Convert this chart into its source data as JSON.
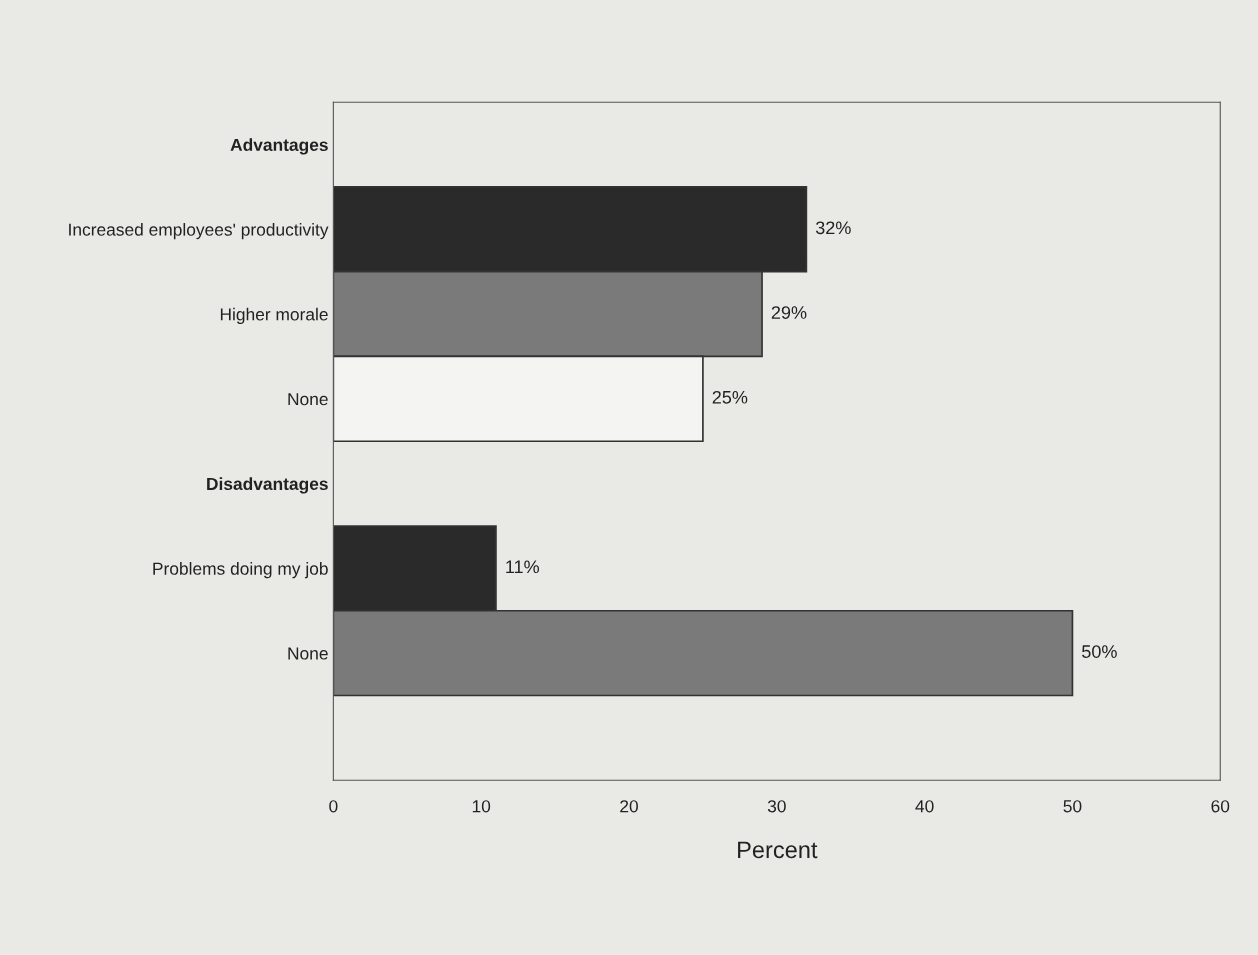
{
  "chart_data": {
    "type": "bar",
    "orientation": "horizontal",
    "xlabel": "Percent",
    "categories": [
      "Advantages",
      "Increased employees' productivity",
      "Higher morale",
      "None",
      "Disadvantages",
      "Problems doing my job",
      "None",
      null
    ],
    "values": [
      null,
      32,
      29,
      25,
      null,
      11,
      50,
      null
    ],
    "colors": [
      "#2a2a2a",
      "#2a2a2a",
      "#7a7a7a",
      "#f4f4f2",
      "#2a2a2a",
      "#2a2a2a",
      "#7a7a7a",
      "#7a7a7a"
    ],
    "value_labels": [
      null,
      "32%",
      "29%",
      "25%",
      null,
      "11%",
      "50%",
      null
    ],
    "xlim": [
      0,
      60
    ],
    "xticks": [
      0,
      10,
      20,
      30,
      40,
      50,
      60
    ],
    "grid": false,
    "legend": false
  }
}
